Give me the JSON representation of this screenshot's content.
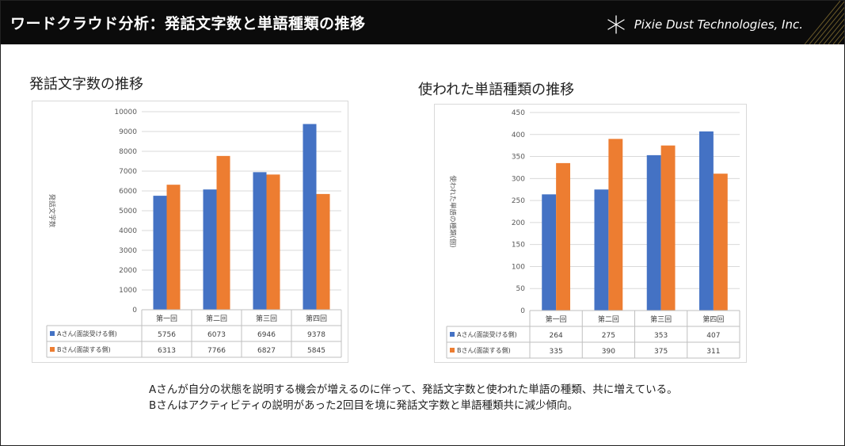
{
  "header": {
    "title": "ワードクラウド分析：発話文字数と単語種類の推移",
    "brand": "Pixie Dust Technologies, Inc.",
    "logo_icon": "asterisk-star-icon"
  },
  "charts": [
    {
      "heading": "発話文字数の推移"
    },
    {
      "heading": "使われた単語種類の推移"
    }
  ],
  "chart_data": [
    {
      "type": "bar",
      "title": "",
      "ylabel": "発話文字数",
      "ylim": [
        0,
        10000
      ],
      "yticks": [
        0,
        1000,
        2000,
        3000,
        4000,
        5000,
        6000,
        7000,
        8000,
        9000,
        10000
      ],
      "categories": [
        "第一回",
        "第二回",
        "第三回",
        "第四回"
      ],
      "grid": true,
      "legend": "data-table",
      "series": [
        {
          "name": "Aさん(面談受ける側)",
          "color": "#4472c4",
          "values": [
            5756,
            6073,
            6946,
            9378
          ]
        },
        {
          "name": "Bさん(面談する側)",
          "color": "#ed7d31",
          "values": [
            6313,
            7766,
            6827,
            5845
          ]
        }
      ]
    },
    {
      "type": "bar",
      "title": "",
      "ylabel": "使われた単語の種類(個)",
      "ylim": [
        0,
        450
      ],
      "yticks": [
        0,
        50,
        100,
        150,
        200,
        250,
        300,
        350,
        400,
        450
      ],
      "categories": [
        "第一回",
        "第二回",
        "第三回",
        "第四回"
      ],
      "grid": true,
      "legend": "data-table",
      "series": [
        {
          "name": "Aさん(面談受ける側)",
          "color": "#4472c4",
          "values": [
            264,
            275,
            353,
            407
          ]
        },
        {
          "name": "Bさん(面談する側)",
          "color": "#ed7d31",
          "values": [
            335,
            390,
            375,
            311
          ]
        }
      ]
    }
  ],
  "notes": [
    "Aさんが自分の状態を説明する機会が増えるのに伴って、発話文字数と使われた単語の種類、共に増えている。",
    "Bさんはアクティビティの説明があった2回目を境に発話文字数と単語種類共に減少傾向。"
  ]
}
